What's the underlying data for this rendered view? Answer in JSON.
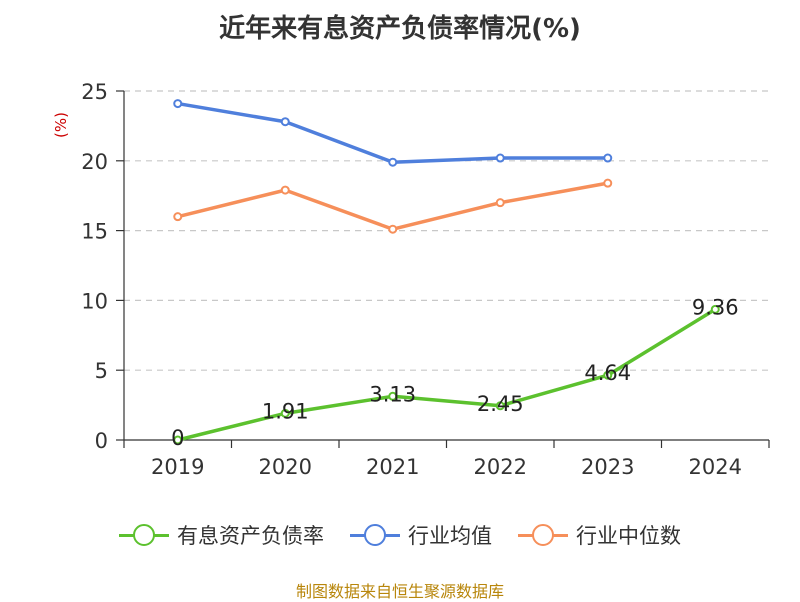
{
  "chart_data": {
    "type": "line",
    "title": "近年来有息资产负债率情况(%)",
    "ylabel": "(%)",
    "categories": [
      "2019",
      "2020",
      "2021",
      "2022",
      "2023",
      "2024"
    ],
    "ylim": [
      0,
      25
    ],
    "yticks": [
      "0",
      "5",
      "10",
      "15",
      "20",
      "25"
    ],
    "grid": true,
    "legend_position": "bottom",
    "series": [
      {
        "name": "有息资产负债率",
        "color": "#5cc12e",
        "values": [
          0,
          1.91,
          3.13,
          2.45,
          4.64,
          9.36
        ],
        "labels": [
          "0",
          "1.91",
          "3.13",
          "2.45",
          "4.64",
          "9.36"
        ]
      },
      {
        "name": "行业均值",
        "color": "#4f7fdc",
        "values": [
          24.1,
          22.8,
          19.9,
          20.2,
          20.2,
          null
        ]
      },
      {
        "name": "行业中位数",
        "color": "#f68f5a",
        "values": [
          16.0,
          17.9,
          15.1,
          17.0,
          18.4,
          null
        ]
      }
    ]
  },
  "source": "制图数据来自恒生聚源数据库"
}
